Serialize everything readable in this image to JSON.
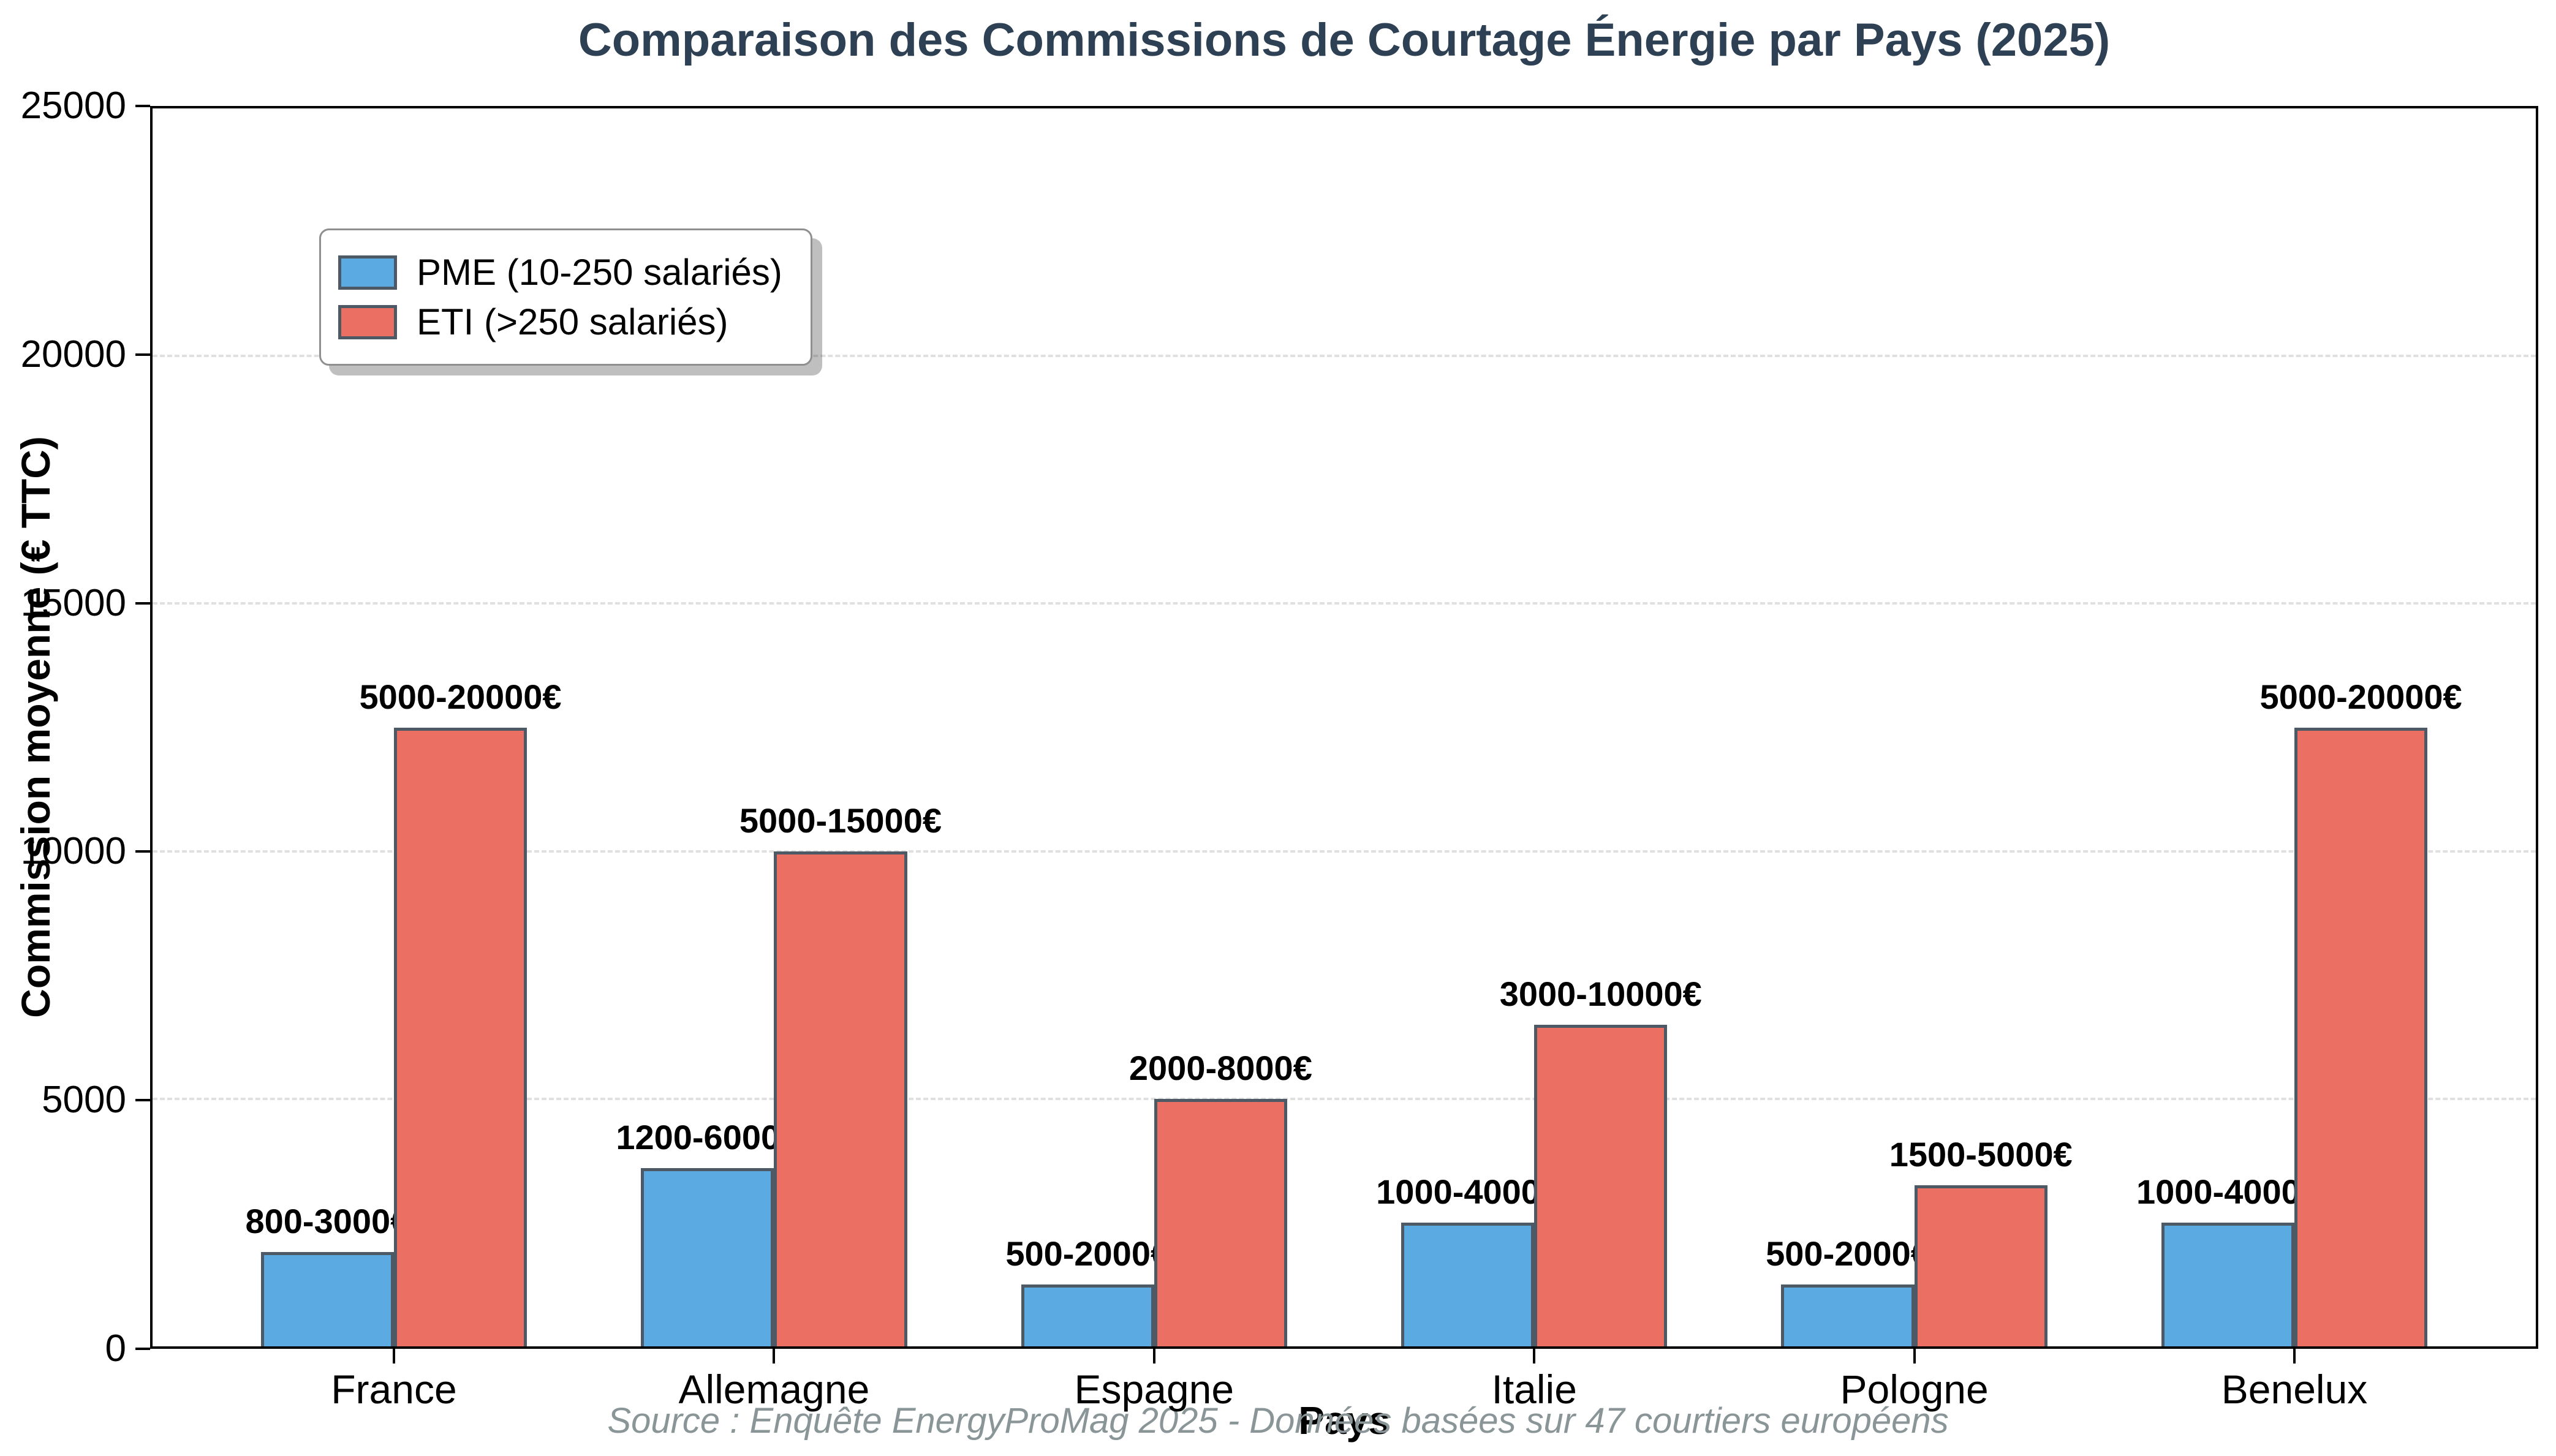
{
  "chart_data": {
    "type": "bar",
    "title": "Comparaison des Commissions de Courtage Énergie par Pays (2025)",
    "xlabel": "Pays",
    "ylabel": "Commission moyenne (€ TTC)",
    "categories": [
      "France",
      "Allemagne",
      "Espagne",
      "Italie",
      "Pologne",
      "Benelux"
    ],
    "series": [
      {
        "name": "PME (10-250 salariés)",
        "color": "#5babe2",
        "values": [
          1900,
          3600,
          1250,
          2500,
          1250,
          2500
        ],
        "labels": [
          "800-3000€",
          "1200-6000€",
          "500-2000€",
          "1000-4000€",
          "500-2000€",
          "1000-4000€"
        ]
      },
      {
        "name": "ETI (>250 salariés)",
        "color": "#ec6f63",
        "values": [
          12500,
          10000,
          5000,
          6500,
          3250,
          12500
        ],
        "labels": [
          "5000-20000€",
          "5000-15000€",
          "2000-8000€",
          "3000-10000€",
          "1500-5000€",
          "5000-20000€"
        ]
      }
    ],
    "ylim": [
      0,
      25000
    ],
    "yticks": [
      0,
      5000,
      10000,
      15000,
      20000,
      25000
    ],
    "grid": "horizontal-dashed",
    "legend_position": "upper-left",
    "source_note": "Source : Enquête EnergyProMag 2025 - Données basées sur 47 courtiers européens",
    "colors": {
      "title": "#2e4053",
      "bar_edge": "#4d5a66",
      "grid": "#e0e0e0",
      "source_text": "#8a9597"
    }
  }
}
